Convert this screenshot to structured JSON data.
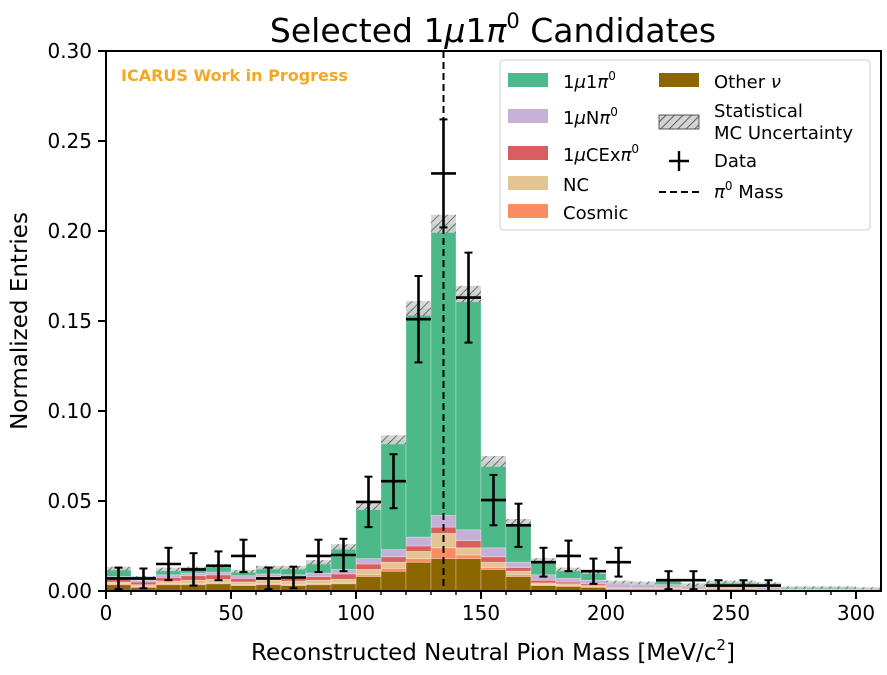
{
  "chart_data": {
    "type": "bar",
    "stacked": true,
    "title_prefix": "Selected 1",
    "title_mu": "μ",
    "title_one": "1",
    "title_pi": "π",
    "title_sup": "0",
    "title_suffix": " Candidates",
    "watermark": "ICARUS Work in Progress",
    "xlabel_main": "Reconstructed Neutral Pion Mass [MeV/c",
    "xlabel_sup": "2",
    "xlabel_end": "]",
    "ylabel": "Normalized Entries",
    "xlim": [
      0,
      310
    ],
    "ylim": [
      0,
      0.3
    ],
    "x_ticks": [
      0,
      50,
      100,
      150,
      200,
      250,
      300
    ],
    "x_tick_labels": [
      "0",
      "50",
      "100",
      "150",
      "200",
      "250",
      "300"
    ],
    "y_ticks": [
      0,
      0.05,
      0.1,
      0.15,
      0.2,
      0.25,
      0.3
    ],
    "y_tick_labels": [
      "0.00",
      "0.05",
      "0.10",
      "0.15",
      "0.20",
      "0.25",
      "0.30"
    ],
    "bin_edges": [
      0,
      10,
      20,
      30,
      40,
      50,
      60,
      70,
      80,
      90,
      100,
      110,
      120,
      130,
      140,
      150,
      160,
      170,
      180,
      190,
      200,
      210,
      220,
      230,
      240,
      250,
      260,
      270,
      280,
      290,
      300,
      310
    ],
    "pi0_mass_line": 135,
    "legend_position": "upper-right",
    "series": [
      {
        "key": "other",
        "color": "#8c6700",
        "values": [
          0.0035,
          0.002,
          0.0035,
          0.0035,
          0.004,
          0.003,
          0.0035,
          0.003,
          0.0035,
          0.004,
          0.008,
          0.011,
          0.016,
          0.018,
          0.018,
          0.012,
          0.008,
          0.003,
          0.0025,
          0.002,
          0.001,
          0.001,
          0.001,
          0.0005,
          0.001,
          0.001,
          0.0005,
          0.0005,
          0.0005,
          0.0005,
          0.0005
        ]
      },
      {
        "key": "cosmic",
        "color": "#fc8d62",
        "values": [
          0.0005,
          0.0005,
          0.0005,
          0.0005,
          0.0005,
          0.0005,
          0.0005,
          0.0005,
          0.0005,
          0.0005,
          0.001,
          0.0015,
          0.002,
          0.006,
          0.002,
          0.001,
          0.001,
          0.0005,
          0.0005,
          0.0005,
          0.0,
          0.0,
          0.0,
          0.0,
          0.0,
          0.0,
          0.0,
          0.0,
          0.0,
          0.0,
          0.0
        ]
      },
      {
        "key": "nc",
        "color": "#e5c494",
        "values": [
          0.001,
          0.001,
          0.0015,
          0.002,
          0.002,
          0.0015,
          0.002,
          0.002,
          0.002,
          0.002,
          0.003,
          0.0035,
          0.004,
          0.008,
          0.004,
          0.003,
          0.002,
          0.001,
          0.001,
          0.0005,
          0.0005,
          0.0005,
          0.0005,
          0.0005,
          0.0005,
          0.0005,
          0.0,
          0.0,
          0.0,
          0.0,
          0.0
        ]
      },
      {
        "key": "cex",
        "color": "#d95f5f",
        "values": [
          0.002,
          0.0015,
          0.002,
          0.0025,
          0.0025,
          0.002,
          0.002,
          0.002,
          0.002,
          0.003,
          0.003,
          0.003,
          0.003,
          0.0035,
          0.004,
          0.003,
          0.002,
          0.0015,
          0.001,
          0.001,
          0.0005,
          0.0005,
          0.0005,
          0.0005,
          0.0005,
          0.0005,
          0.0005,
          0.0,
          0.0,
          0.0,
          0.0
        ]
      },
      {
        "key": "npi",
        "color": "#c6b0d8",
        "values": [
          0.001,
          0.001,
          0.0015,
          0.0015,
          0.0015,
          0.0015,
          0.0015,
          0.0015,
          0.002,
          0.0025,
          0.003,
          0.004,
          0.005,
          0.0065,
          0.006,
          0.005,
          0.003,
          0.003,
          0.002,
          0.002,
          0.002,
          0.0015,
          0.0015,
          0.001,
          0.001,
          0.001,
          0.001,
          0.0005,
          0.0005,
          0.0005,
          0.0005
        ]
      },
      {
        "key": "sig",
        "color": "#4db888",
        "values": [
          0.0045,
          0.0015,
          0.003,
          0.0025,
          0.0035,
          0.0025,
          0.0035,
          0.004,
          0.006,
          0.0125,
          0.029,
          0.061,
          0.127,
          0.162,
          0.131,
          0.048,
          0.022,
          0.008,
          0.005,
          0.0045,
          0.001,
          0.001,
          0.0025,
          0.001,
          0.002,
          0.002,
          0.002,
          0.001,
          0.001,
          0.001,
          0.0005
        ]
      }
    ],
    "stat_uncertainty": [
      0.001,
      0.0008,
      0.001,
      0.001,
      0.001,
      0.0008,
      0.001,
      0.001,
      0.0012,
      0.0015,
      0.002,
      0.0025,
      0.004,
      0.005,
      0.0045,
      0.003,
      0.002,
      0.0012,
      0.001,
      0.001,
      0.0008,
      0.0008,
      0.0008,
      0.0008,
      0.0008,
      0.0008,
      0.0008,
      0.0006,
      0.0006,
      0.0006,
      0.0006
    ],
    "data_points": {
      "x": [
        5,
        15,
        25,
        35,
        45,
        55,
        65,
        75,
        85,
        95,
        105,
        115,
        125,
        135,
        145,
        155,
        165,
        175,
        185,
        195,
        205,
        225,
        235,
        245,
        255,
        265
      ],
      "y": [
        0.007,
        0.007,
        0.015,
        0.012,
        0.014,
        0.0195,
        0.007,
        0.0075,
        0.0195,
        0.02,
        0.0495,
        0.061,
        0.151,
        0.232,
        0.163,
        0.0505,
        0.0365,
        0.016,
        0.0195,
        0.011,
        0.016,
        0.006,
        0.006,
        0.003,
        0.003,
        0.003
      ],
      "yerr": [
        0.006,
        0.0055,
        0.009,
        0.009,
        0.008,
        0.009,
        0.006,
        0.006,
        0.009,
        0.009,
        0.014,
        0.015,
        0.024,
        0.03,
        0.025,
        0.014,
        0.012,
        0.008,
        0.0085,
        0.007,
        0.008,
        0.005,
        0.005,
        0.003,
        0.003,
        0.003
      ],
      "xerr": 5
    },
    "legend": {
      "sig": {
        "pre": "1",
        "mu": "μ",
        "mid": "1",
        "pi": "π",
        "sup": "0",
        "post": ""
      },
      "npi": {
        "pre": "1",
        "mu": "μ",
        "mid": "N",
        "pi": "π",
        "sup": "0",
        "post": ""
      },
      "cex": {
        "pre": "1",
        "mu": "μ",
        "mid": "CEx",
        "pi": "π",
        "sup": "0",
        "post": ""
      },
      "nc": "NC",
      "cosmic": "Cosmic",
      "other_pre": "Other ",
      "other_nu": "ν",
      "stat_line1": "Statistical",
      "stat_line2": "MC Uncertainty",
      "data": "Data",
      "mass_pi": "π",
      "mass_sup": "0",
      "mass_post": " Mass"
    },
    "colors": {
      "watermark": "#f5a623",
      "hatch_fill": "#d3d3d3",
      "grid": false
    }
  }
}
